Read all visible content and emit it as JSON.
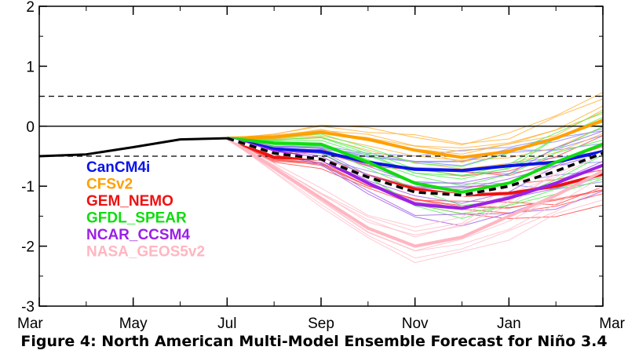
{
  "caption": "Figure 4: North American Multi-Model Ensemble Forecast for Niño 3.4",
  "chart_data": {
    "type": "line",
    "title": "",
    "xlabel": "",
    "ylabel": "",
    "x_ticks": [
      {
        "label": "Mar",
        "pos": 0
      },
      {
        "label": "May",
        "pos": 2
      },
      {
        "label": "Jul",
        "pos": 4
      },
      {
        "label": "Sep",
        "pos": 6
      },
      {
        "label": "Nov",
        "pos": 8
      },
      {
        "label": "Jan",
        "pos": 10
      },
      {
        "label": "Mar",
        "pos": 12
      }
    ],
    "xlim": [
      0,
      12
    ],
    "ylim": [
      -3,
      2
    ],
    "y_ticks": [
      2,
      1,
      0,
      -1,
      -2,
      -3
    ],
    "reference_lines": [
      {
        "y": 0.5,
        "style": "dashed"
      },
      {
        "y": 0,
        "style": "solid"
      },
      {
        "y": -0.5,
        "style": "dashed"
      }
    ],
    "legend_position": "left",
    "observed": {
      "color": "#000000",
      "x": [
        0,
        1,
        2,
        3,
        4
      ],
      "y": [
        -0.5,
        -0.47,
        -0.35,
        -0.22,
        -0.2
      ]
    },
    "series": [
      {
        "name": "CanCM4i",
        "color": "#0a14e6",
        "member_color": "#8c8cff",
        "x": [
          4,
          5,
          6,
          7,
          8,
          9,
          10,
          11,
          12
        ],
        "mean": [
          -0.2,
          -0.38,
          -0.42,
          -0.6,
          -0.72,
          -0.74,
          -0.66,
          -0.6,
          -0.42
        ]
      },
      {
        "name": "CFSv2",
        "color": "#ffa000",
        "member_color": "#ffb43c",
        "x": [
          4,
          5,
          6,
          7,
          8,
          9,
          10,
          11,
          12
        ],
        "mean": [
          -0.2,
          -0.18,
          -0.1,
          -0.22,
          -0.4,
          -0.52,
          -0.42,
          -0.2,
          0.1
        ]
      },
      {
        "name": "GEM_NEMO",
        "color": "#ee1111",
        "member_color": "#ff5050",
        "x": [
          4,
          5,
          6,
          7,
          8,
          9,
          10,
          11,
          12
        ],
        "mean": [
          -0.2,
          -0.52,
          -0.55,
          -0.85,
          -1.05,
          -1.15,
          -1.12,
          -1.0,
          -0.8
        ]
      },
      {
        "name": "GFDL_SPEAR",
        "color": "#10dc10",
        "member_color": "#50f050",
        "x": [
          4,
          5,
          6,
          7,
          8,
          9,
          10,
          11,
          12
        ],
        "mean": [
          -0.2,
          -0.28,
          -0.3,
          -0.6,
          -0.95,
          -1.1,
          -0.95,
          -0.6,
          -0.3
        ]
      },
      {
        "name": "NCAR_CCSM4",
        "color": "#9b20e6",
        "member_color": "#a060e6",
        "x": [
          4,
          5,
          6,
          7,
          8,
          9,
          10,
          11,
          12
        ],
        "mean": [
          -0.2,
          -0.42,
          -0.55,
          -0.95,
          -1.3,
          -1.37,
          -1.2,
          -0.95,
          -0.65
        ]
      },
      {
        "name": "NASA_GEOS5v2",
        "color": "#ffb6c1",
        "member_color": "#ffc0cb",
        "x": [
          4,
          5,
          6,
          7,
          8,
          9,
          10,
          11,
          12
        ],
        "mean": [
          -0.2,
          -0.7,
          -1.2,
          -1.7,
          -2.0,
          -1.85,
          -1.5,
          -1.15,
          -0.75
        ]
      }
    ],
    "multi_model_mean": {
      "color": "#000000",
      "style": "dashed",
      "x": [
        4,
        5,
        6,
        7,
        8,
        9,
        10,
        11,
        12
      ],
      "y": [
        -0.2,
        -0.45,
        -0.55,
        -0.85,
        -1.1,
        -1.15,
        -1.0,
        -0.75,
        -0.45
      ]
    }
  }
}
